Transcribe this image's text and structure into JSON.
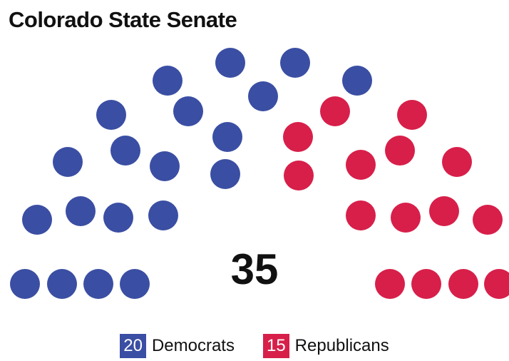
{
  "chart_data": {
    "type": "parliament",
    "title": "Colorado State Senate",
    "total_label": "35",
    "series": [
      {
        "name": "Democrats",
        "value": 20,
        "color": "#3a4ea3"
      },
      {
        "name": "Republicans",
        "value": 15,
        "color": "#d71f4a"
      }
    ]
  },
  "legend": {
    "dem_count": "20",
    "dem_label": "Democrats",
    "rep_count": "15",
    "rep_label": "Republicans"
  }
}
